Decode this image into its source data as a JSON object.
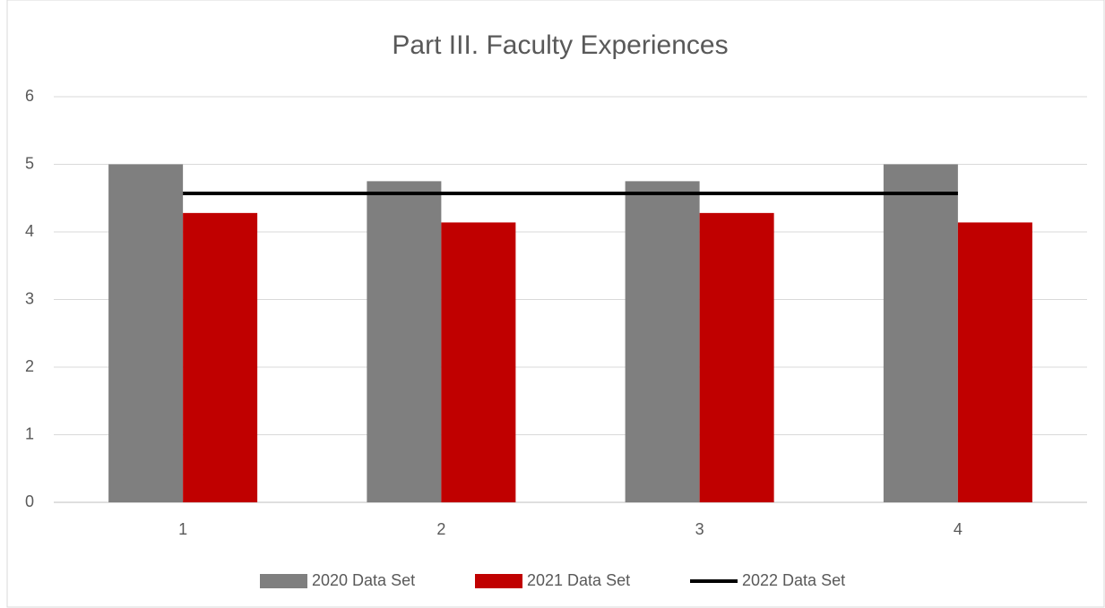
{
  "chart_data": {
    "type": "bar",
    "title": "Part III. Faculty Experiences",
    "categories": [
      "1",
      "2",
      "3",
      "4"
    ],
    "series": [
      {
        "name": "2020 Data Set",
        "color": "#7f7f7f",
        "values": [
          5,
          4.75,
          4.75,
          5
        ]
      },
      {
        "name": "2021 Data Set",
        "color": "#c00000",
        "values": [
          4.28,
          4.14,
          4.28,
          4.14
        ]
      },
      {
        "name": "2022 Data Set",
        "color": "#000000",
        "type": "line",
        "values": [
          4.57,
          4.57,
          4.57,
          4.57
        ]
      }
    ],
    "ylim": [
      0,
      6
    ],
    "yticks": [
      0,
      1,
      2,
      3,
      4,
      5,
      6
    ],
    "grid": true,
    "legend": "bottom"
  }
}
